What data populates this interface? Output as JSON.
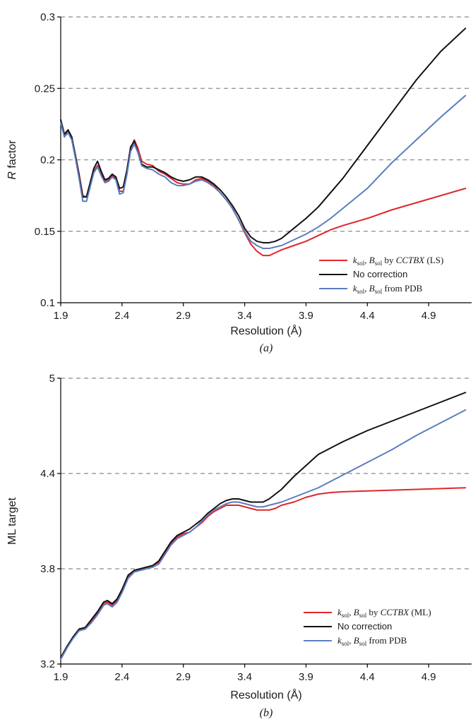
{
  "chart_data": [
    {
      "type": "line",
      "panel_label": "(a)",
      "title": "",
      "xlabel": "Resolution (Å)",
      "ylabel_italic": "R",
      "ylabel_rest": " factor",
      "xlim": [
        1.9,
        5.25
      ],
      "ylim": [
        0.1,
        0.3
      ],
      "x_ticks": [
        1.9,
        2.4,
        2.9,
        3.4,
        3.9,
        4.4,
        4.9
      ],
      "y_ticks": [
        0.1,
        0.15,
        0.2,
        0.25,
        0.3
      ],
      "x_tick_labels": [
        "1.9",
        "2.4",
        "2.9",
        "3.4",
        "3.9",
        "4.4",
        "4.9"
      ],
      "y_tick_labels": [
        "0.1",
        "0.15",
        "0.2",
        "0.25",
        "0.3"
      ],
      "grid": "horizontal dashed",
      "legend_position": "lower-right",
      "series": [
        {
          "id": "cctbx",
          "legend": {
            "k": "k",
            "ksub": "sol",
            "sep": ", ",
            "b": "B",
            "bsub": "sol",
            "mid": " by ",
            "prog": "CCTBX",
            "tail": " (LS)"
          },
          "color": "#e0262b",
          "x": [
            1.9,
            1.93,
            1.96,
            1.99,
            2.02,
            2.05,
            2.08,
            2.11,
            2.14,
            2.17,
            2.2,
            2.23,
            2.26,
            2.29,
            2.32,
            2.35,
            2.38,
            2.41,
            2.44,
            2.47,
            2.5,
            2.53,
            2.56,
            2.6,
            2.65,
            2.7,
            2.75,
            2.8,
            2.85,
            2.9,
            2.95,
            3.0,
            3.05,
            3.1,
            3.15,
            3.2,
            3.25,
            3.3,
            3.35,
            3.4,
            3.45,
            3.5,
            3.55,
            3.6,
            3.65,
            3.7,
            3.8,
            3.9,
            4.0,
            4.1,
            4.2,
            4.4,
            4.6,
            4.8,
            5.0,
            5.2
          ],
          "y": [
            0.226,
            0.217,
            0.22,
            0.215,
            0.203,
            0.19,
            0.175,
            0.174,
            0.183,
            0.192,
            0.196,
            0.19,
            0.185,
            0.186,
            0.189,
            0.187,
            0.178,
            0.178,
            0.19,
            0.208,
            0.214,
            0.208,
            0.199,
            0.197,
            0.196,
            0.192,
            0.19,
            0.187,
            0.184,
            0.183,
            0.183,
            0.186,
            0.187,
            0.185,
            0.182,
            0.177,
            0.172,
            0.166,
            0.158,
            0.149,
            0.141,
            0.136,
            0.133,
            0.133,
            0.135,
            0.137,
            0.14,
            0.143,
            0.147,
            0.151,
            0.154,
            0.159,
            0.165,
            0.17,
            0.175,
            0.18
          ]
        },
        {
          "id": "nocorr",
          "legend": {
            "plain": "No correction"
          },
          "color": "#111111",
          "x": [
            1.9,
            1.93,
            1.96,
            1.99,
            2.02,
            2.05,
            2.08,
            2.11,
            2.14,
            2.17,
            2.2,
            2.23,
            2.26,
            2.29,
            2.32,
            2.35,
            2.38,
            2.41,
            2.44,
            2.47,
            2.5,
            2.53,
            2.56,
            2.6,
            2.65,
            2.7,
            2.75,
            2.8,
            2.85,
            2.9,
            2.95,
            3.0,
            3.05,
            3.1,
            3.15,
            3.2,
            3.25,
            3.3,
            3.35,
            3.4,
            3.45,
            3.5,
            3.55,
            3.6,
            3.65,
            3.7,
            3.8,
            3.9,
            4.0,
            4.1,
            4.2,
            4.4,
            4.6,
            4.8,
            5.0,
            5.2
          ],
          "y": [
            0.228,
            0.218,
            0.221,
            0.216,
            0.203,
            0.189,
            0.174,
            0.174,
            0.184,
            0.194,
            0.199,
            0.192,
            0.186,
            0.187,
            0.19,
            0.188,
            0.18,
            0.181,
            0.193,
            0.209,
            0.213,
            0.205,
            0.197,
            0.195,
            0.195,
            0.193,
            0.191,
            0.188,
            0.186,
            0.185,
            0.186,
            0.188,
            0.188,
            0.186,
            0.183,
            0.179,
            0.174,
            0.168,
            0.161,
            0.152,
            0.146,
            0.143,
            0.142,
            0.142,
            0.143,
            0.145,
            0.152,
            0.159,
            0.167,
            0.177,
            0.187,
            0.21,
            0.233,
            0.256,
            0.276,
            0.292
          ]
        },
        {
          "id": "pdb",
          "legend": {
            "k": "k",
            "ksub": "sol",
            "sep": ", ",
            "b": "B",
            "bsub": "sol",
            "mid": " from PDB"
          },
          "color": "#5b7dbf",
          "x": [
            1.9,
            1.93,
            1.96,
            1.99,
            2.02,
            2.05,
            2.08,
            2.11,
            2.14,
            2.17,
            2.2,
            2.23,
            2.26,
            2.29,
            2.32,
            2.35,
            2.38,
            2.41,
            2.44,
            2.47,
            2.5,
            2.53,
            2.56,
            2.6,
            2.65,
            2.7,
            2.75,
            2.8,
            2.85,
            2.9,
            2.95,
            3.0,
            3.05,
            3.1,
            3.15,
            3.2,
            3.25,
            3.3,
            3.35,
            3.4,
            3.45,
            3.5,
            3.55,
            3.6,
            3.65,
            3.7,
            3.8,
            3.9,
            4.0,
            4.1,
            4.2,
            4.4,
            4.6,
            4.8,
            5.0,
            5.2
          ],
          "y": [
            0.226,
            0.216,
            0.219,
            0.214,
            0.201,
            0.187,
            0.171,
            0.171,
            0.181,
            0.191,
            0.195,
            0.189,
            0.184,
            0.185,
            0.188,
            0.186,
            0.176,
            0.177,
            0.19,
            0.206,
            0.211,
            0.205,
            0.196,
            0.194,
            0.193,
            0.19,
            0.188,
            0.184,
            0.182,
            0.182,
            0.183,
            0.185,
            0.186,
            0.184,
            0.181,
            0.177,
            0.172,
            0.166,
            0.158,
            0.15,
            0.143,
            0.14,
            0.138,
            0.138,
            0.139,
            0.14,
            0.144,
            0.148,
            0.153,
            0.159,
            0.166,
            0.18,
            0.198,
            0.214,
            0.23,
            0.245
          ]
        }
      ]
    },
    {
      "type": "line",
      "panel_label": "(b)",
      "title": "",
      "xlabel": "Resolution (Å)",
      "ylabel_italic": "",
      "ylabel_rest": "ML target",
      "xlim": [
        1.9,
        5.25
      ],
      "ylim": [
        3.2,
        5.0
      ],
      "x_ticks": [
        1.9,
        2.4,
        2.9,
        3.4,
        3.9,
        4.4,
        4.9
      ],
      "y_ticks": [
        3.2,
        3.8,
        4.4,
        5.0
      ],
      "x_tick_labels": [
        "1.9",
        "2.4",
        "2.9",
        "3.4",
        "3.9",
        "4.4",
        "4.9"
      ],
      "y_tick_labels": [
        "3.2",
        "3.8",
        "4.4",
        "5"
      ],
      "grid": "horizontal dashed",
      "legend_position": "lower-right",
      "series": [
        {
          "id": "cctbx",
          "legend": {
            "k": "k",
            "ksub": "sol",
            "sep": ", ",
            "b": "B",
            "bsub": "sol",
            "mid": " by ",
            "prog": "CCTBX",
            "tail": " (ML)"
          },
          "color": "#e0262b",
          "x": [
            1.9,
            1.95,
            2.0,
            2.05,
            2.1,
            2.15,
            2.2,
            2.25,
            2.28,
            2.32,
            2.36,
            2.4,
            2.45,
            2.5,
            2.55,
            2.6,
            2.65,
            2.7,
            2.75,
            2.8,
            2.85,
            2.9,
            2.95,
            3.0,
            3.05,
            3.1,
            3.15,
            3.2,
            3.25,
            3.3,
            3.35,
            3.4,
            3.45,
            3.5,
            3.55,
            3.6,
            3.65,
            3.7,
            3.8,
            3.9,
            4.0,
            4.1,
            4.2,
            4.4,
            4.6,
            4.8,
            5.0,
            5.2
          ],
          "y": [
            3.23,
            3.3,
            3.37,
            3.42,
            3.43,
            3.47,
            3.52,
            3.58,
            3.59,
            3.57,
            3.6,
            3.66,
            3.75,
            3.79,
            3.8,
            3.81,
            3.82,
            3.84,
            3.9,
            3.96,
            4.0,
            4.02,
            4.03,
            4.06,
            4.09,
            4.13,
            4.16,
            4.18,
            4.2,
            4.2,
            4.2,
            4.19,
            4.18,
            4.17,
            4.17,
            4.17,
            4.18,
            4.2,
            4.22,
            4.25,
            4.27,
            4.28,
            4.285,
            4.29,
            4.295,
            4.3,
            4.305,
            4.31
          ]
        },
        {
          "id": "nocorr",
          "legend": {
            "plain": "No correction"
          },
          "color": "#111111",
          "x": [
            1.9,
            1.95,
            2.0,
            2.05,
            2.1,
            2.15,
            2.2,
            2.25,
            2.28,
            2.32,
            2.36,
            2.4,
            2.45,
            2.5,
            2.55,
            2.6,
            2.65,
            2.7,
            2.75,
            2.8,
            2.85,
            2.9,
            2.95,
            3.0,
            3.05,
            3.1,
            3.15,
            3.2,
            3.25,
            3.3,
            3.35,
            3.4,
            3.45,
            3.5,
            3.55,
            3.6,
            3.65,
            3.7,
            3.8,
            3.9,
            4.0,
            4.1,
            4.2,
            4.4,
            4.6,
            4.8,
            5.0,
            5.2
          ],
          "y": [
            3.24,
            3.31,
            3.37,
            3.42,
            3.43,
            3.48,
            3.53,
            3.59,
            3.6,
            3.58,
            3.61,
            3.67,
            3.76,
            3.79,
            3.8,
            3.81,
            3.82,
            3.85,
            3.91,
            3.97,
            4.01,
            4.03,
            4.05,
            4.08,
            4.11,
            4.15,
            4.18,
            4.21,
            4.23,
            4.24,
            4.24,
            4.23,
            4.22,
            4.22,
            4.22,
            4.24,
            4.27,
            4.3,
            4.38,
            4.45,
            4.52,
            4.56,
            4.6,
            4.67,
            4.73,
            4.79,
            4.85,
            4.91
          ]
        },
        {
          "id": "pdb",
          "legend": {
            "k": "k",
            "ksub": "sol",
            "sep": ", ",
            "b": "B",
            "bsub": "sol",
            "mid": " from PDB"
          },
          "color": "#5b7dbf",
          "x": [
            1.9,
            1.95,
            2.0,
            2.05,
            2.1,
            2.15,
            2.2,
            2.25,
            2.28,
            2.32,
            2.36,
            2.4,
            2.45,
            2.5,
            2.55,
            2.6,
            2.65,
            2.7,
            2.75,
            2.8,
            2.85,
            2.9,
            2.95,
            3.0,
            3.05,
            3.1,
            3.15,
            3.2,
            3.25,
            3.3,
            3.35,
            3.4,
            3.45,
            3.5,
            3.55,
            3.6,
            3.65,
            3.7,
            3.8,
            3.9,
            4.0,
            4.1,
            4.2,
            4.4,
            4.6,
            4.8,
            5.0,
            5.2
          ],
          "y": [
            3.23,
            3.3,
            3.36,
            3.41,
            3.42,
            3.46,
            3.51,
            3.57,
            3.58,
            3.56,
            3.59,
            3.65,
            3.74,
            3.78,
            3.79,
            3.8,
            3.81,
            3.83,
            3.89,
            3.95,
            3.99,
            4.01,
            4.03,
            4.06,
            4.1,
            4.14,
            4.17,
            4.19,
            4.21,
            4.22,
            4.22,
            4.21,
            4.2,
            4.19,
            4.19,
            4.2,
            4.21,
            4.22,
            4.25,
            4.28,
            4.31,
            4.35,
            4.39,
            4.47,
            4.55,
            4.64,
            4.72,
            4.8
          ]
        }
      ]
    }
  ]
}
